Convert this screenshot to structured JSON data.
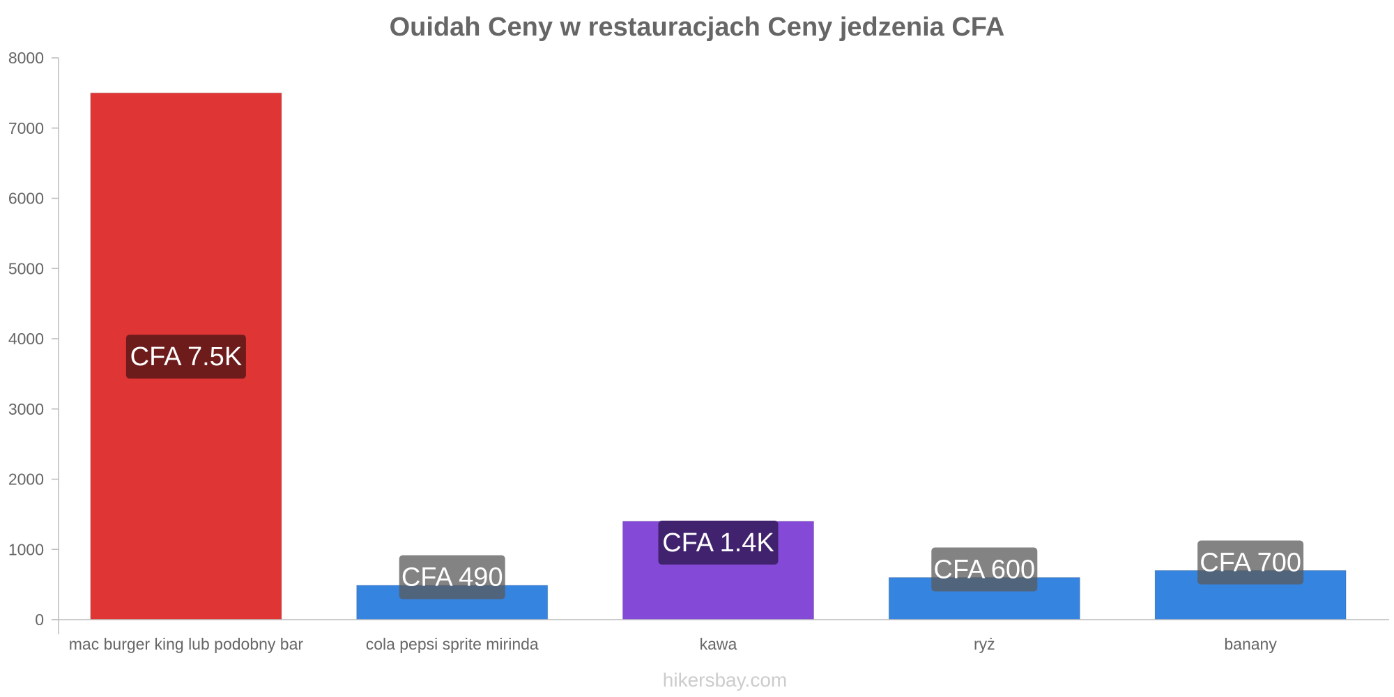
{
  "chart_data": {
    "type": "bar",
    "title": "Ouidah Ceny w restauracjach Ceny jedzenia CFA",
    "xlabel": "",
    "ylabel": "",
    "ylim": [
      0,
      8000
    ],
    "yticks": [
      0,
      1000,
      2000,
      3000,
      4000,
      5000,
      6000,
      7000,
      8000
    ],
    "grid": false,
    "categories": [
      "mac burger king lub podobny bar",
      "cola pepsi sprite mirinda",
      "kawa",
      "ryż",
      "banany"
    ],
    "values": [
      7500,
      490,
      1400,
      600,
      700
    ],
    "data_labels": [
      "CFA 7.5K",
      "CFA 490",
      "CFA 1.4K",
      "CFA 600",
      "CFA 700"
    ],
    "bar_colors": [
      "#e03535",
      "#3584e0",
      "#8549d8",
      "#3584e0",
      "#3584e0"
    ],
    "label_colors": [
      "#6e1b1b",
      "rgba(90,90,90,0.75)",
      "#40226e",
      "rgba(90,90,90,0.75)",
      "rgba(90,90,90,0.75)"
    ]
  },
  "watermark": "hikersbay.com"
}
